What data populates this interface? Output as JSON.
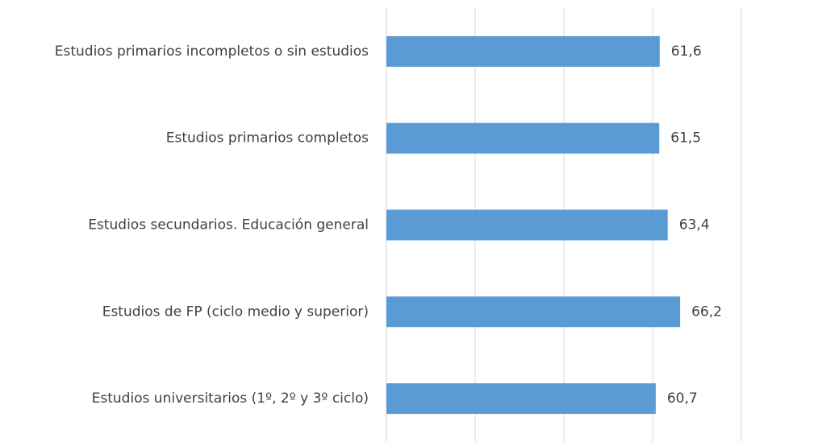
{
  "chart_data": {
    "type": "hbar",
    "categories": [
      "Estudios primarios incompletos o sin estudios",
      "Estudios primarios completos",
      "Estudios secundarios. Educación general",
      "Estudios de FP (ciclo medio y superior)",
      "Estudios universitarios (1º, 2º y 3º ciclo)"
    ],
    "values": [
      61.6,
      61.5,
      63.4,
      66.2,
      60.7
    ],
    "value_labels": [
      "61,6",
      "61,5",
      "63,4",
      "66,2",
      "60,7"
    ],
    "color": "#5b9bd5",
    "xlim": [
      0,
      80
    ],
    "xticks": [
      0,
      20,
      40,
      60,
      80
    ],
    "grid": true
  }
}
